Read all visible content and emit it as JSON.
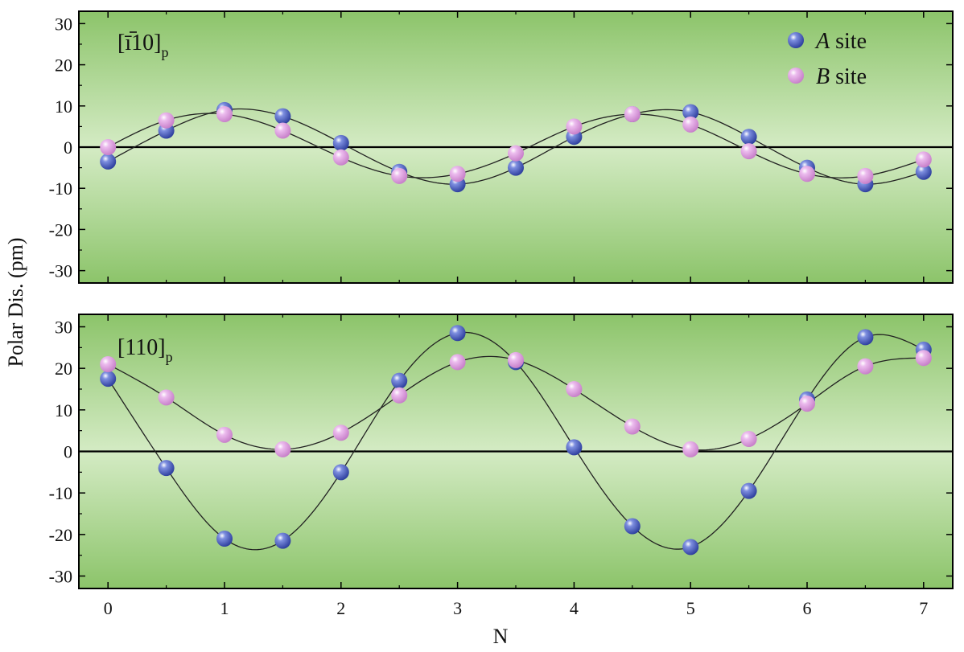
{
  "chart_data": {
    "type": "scatter",
    "ylabel": "Polar Dis. (pm)",
    "xlabel": "N",
    "xlim": [
      -0.25,
      7.25
    ],
    "ylim": [
      -33,
      33
    ],
    "x_ticks": [
      "0",
      "1",
      "2",
      "3",
      "4",
      "5",
      "6",
      "7"
    ],
    "y_ticks": [
      "30",
      "20",
      "10",
      "0",
      "-10",
      "-20",
      "-30"
    ],
    "legend": {
      "position": "top-right",
      "entries": [
        {
          "italic": "A",
          "text": " site"
        },
        {
          "italic": "B",
          "text": " site"
        }
      ]
    },
    "colors": {
      "A": "#2e3f9e",
      "B": "#c77fc9",
      "background_outer": "#8cc46a",
      "background_inner": "#d4ebc4"
    },
    "panels": [
      {
        "label_main": "[ī10]",
        "label_bar": "1",
        "label_sub": "p",
        "series": [
          {
            "key": "A",
            "x": [
              0,
              0.5,
              1,
              1.5,
              2,
              2.5,
              3,
              3.5,
              4,
              4.5,
              5,
              5.5,
              6,
              6.5,
              7
            ],
            "y": [
              -3.5,
              4,
              9,
              7.5,
              1,
              -6,
              -9,
              -5,
              2.5,
              8,
              8.5,
              2.5,
              -5,
              -9,
              -6
            ]
          },
          {
            "key": "B",
            "x": [
              0,
              0.5,
              1,
              1.5,
              2,
              2.5,
              3,
              3.5,
              4,
              4.5,
              5,
              5.5,
              6,
              6.5,
              7
            ],
            "y": [
              0,
              6.5,
              8,
              4,
              -2.5,
              -7,
              -6.5,
              -1.5,
              5,
              8,
              5.5,
              -1,
              -6.5,
              -7,
              -3
            ]
          }
        ]
      },
      {
        "label_main": "[110]",
        "label_bar": "",
        "label_sub": "p",
        "series": [
          {
            "key": "A",
            "x": [
              0,
              0.5,
              1,
              1.5,
              2,
              2.5,
              3,
              3.5,
              4,
              4.5,
              5,
              5.5,
              6,
              6.5,
              7
            ],
            "y": [
              17.5,
              -4,
              -21,
              -21.5,
              -5,
              17,
              28.5,
              21.5,
              1,
              -18,
              -23,
              -9.5,
              12.5,
              27.5,
              24.5
            ]
          },
          {
            "key": "B",
            "x": [
              0,
              0.5,
              1,
              1.5,
              2,
              2.5,
              3,
              3.5,
              4,
              4.5,
              5,
              5.5,
              6,
              6.5,
              7
            ],
            "y": [
              21,
              13,
              4,
              0.5,
              4.5,
              13.5,
              21.5,
              22,
              15,
              6,
              0.5,
              3,
              11.5,
              20.5,
              22.5
            ]
          }
        ]
      }
    ]
  }
}
